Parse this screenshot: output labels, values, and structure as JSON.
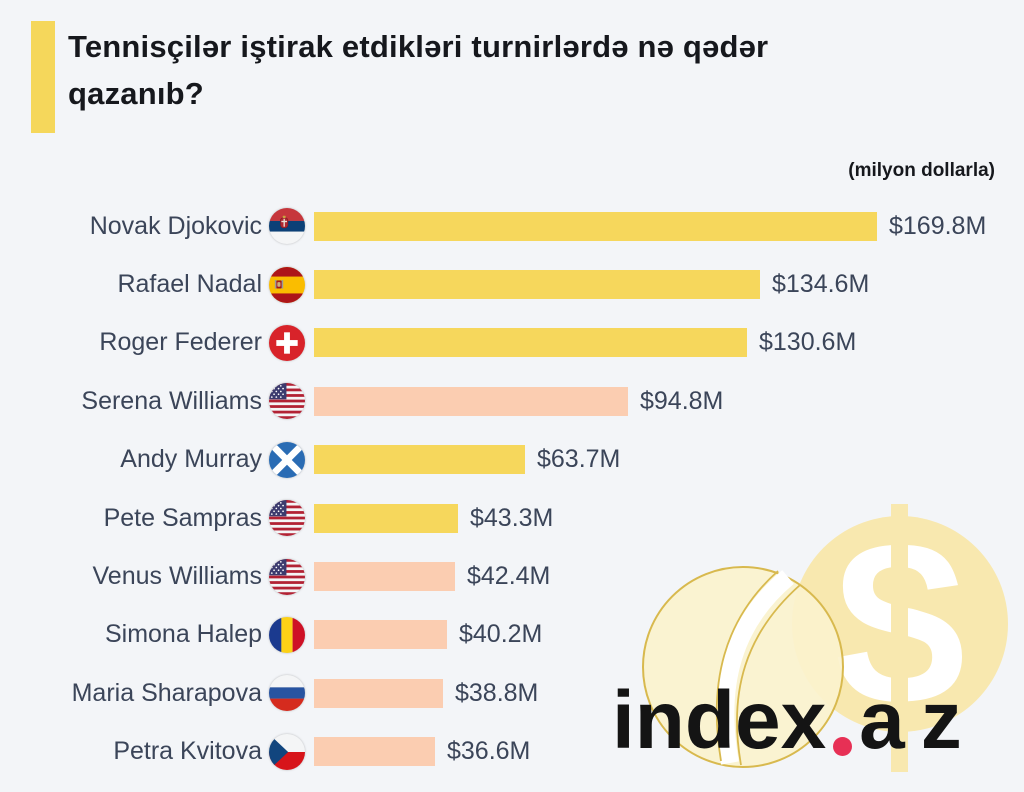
{
  "title": "Tennisçilər iştirak etdikləri turnirlərdə nə qədər\nqazanıb?",
  "unit_note": "(milyon dollarla)",
  "colors": {
    "background": "#f3f5f8",
    "accent_bar": "#f5d75b",
    "male_bar": "#f6d75c",
    "female_bar": "#fbcdb1",
    "text": "#3b4559",
    "title_text": "#16181d",
    "logo_dot": "#e73055",
    "ball_fill": "#fcf4d3",
    "ball_outline": "#d8b94e",
    "dollar_circle": "#f8e8af"
  },
  "watermark": {
    "text_index": "index",
    "text_az": "az",
    "icons": [
      "tennis-ball-icon",
      "dollar-sign-icon"
    ]
  },
  "chart_data": {
    "type": "bar",
    "orientation": "horizontal",
    "title": "Tennisçilər iştirak etdikləri turnirlərdə nə qədər qazanıb?",
    "unit": "milyon dollarla",
    "xlim": [
      0,
      169.8
    ],
    "grid": false,
    "legend": false,
    "categories": [
      "Novak Djokovic",
      "Rafael Nadal",
      "Roger Federer",
      "Serena Williams",
      "Andy Murray",
      "Pete Sampras",
      "Venus Williams",
      "Simona Halep",
      "Maria Sharapova",
      "Petra Kvitova"
    ],
    "values": [
      169.8,
      134.6,
      130.6,
      94.8,
      63.7,
      43.3,
      42.4,
      40.2,
      38.8,
      36.6
    ],
    "players": [
      {
        "name": "Novak Djokovic",
        "country": "Serbia",
        "flag_icon": "serbia-flag-icon",
        "value": 169.8,
        "value_label": "$169.8M",
        "bar_color": "#f6d75c"
      },
      {
        "name": "Rafael Nadal",
        "country": "Spain",
        "flag_icon": "spain-flag-icon",
        "value": 134.6,
        "value_label": "$134.6M",
        "bar_color": "#f6d75c"
      },
      {
        "name": "Roger Federer",
        "country": "Switzerland",
        "flag_icon": "switzerland-flag-icon",
        "value": 130.6,
        "value_label": "$130.6M",
        "bar_color": "#f6d75c"
      },
      {
        "name": "Serena Williams",
        "country": "United States",
        "flag_icon": "usa-flag-icon",
        "value": 94.8,
        "value_label": "$94.8M",
        "bar_color": "#fbcdb1"
      },
      {
        "name": "Andy Murray",
        "country": "Scotland",
        "flag_icon": "scotland-flag-icon",
        "value": 63.7,
        "value_label": "$63.7M",
        "bar_color": "#f6d75c"
      },
      {
        "name": "Pete Sampras",
        "country": "United States",
        "flag_icon": "usa-flag-icon",
        "value": 43.3,
        "value_label": "$43.3M",
        "bar_color": "#f6d75c"
      },
      {
        "name": "Venus Williams",
        "country": "United States",
        "flag_icon": "usa-flag-icon",
        "value": 42.4,
        "value_label": "$42.4M",
        "bar_color": "#fbcdb1"
      },
      {
        "name": "Simona Halep",
        "country": "Romania",
        "flag_icon": "romania-flag-icon",
        "value": 40.2,
        "value_label": "$40.2M",
        "bar_color": "#fbcdb1"
      },
      {
        "name": "Maria Sharapova",
        "country": "Russia",
        "flag_icon": "russia-flag-icon",
        "value": 38.8,
        "value_label": "$38.8M",
        "bar_color": "#fbcdb1"
      },
      {
        "name": "Petra Kvitova",
        "country": "Czech Republic",
        "flag_icon": "czech-republic-flag-icon",
        "value": 36.6,
        "value_label": "$36.6M",
        "bar_color": "#fbcdb1"
      }
    ]
  }
}
